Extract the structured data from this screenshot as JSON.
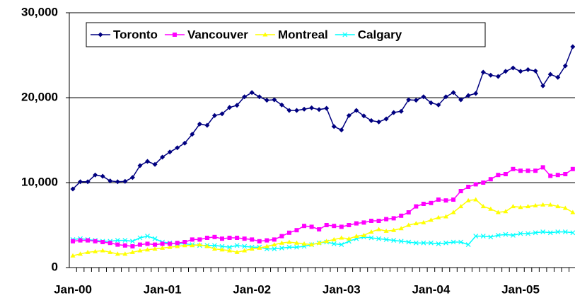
{
  "chart_data": {
    "type": "line",
    "categories": [
      "Jan-00",
      null,
      null,
      null,
      null,
      null,
      null,
      null,
      null,
      null,
      null,
      null,
      "Jan-01",
      null,
      null,
      null,
      null,
      null,
      null,
      null,
      null,
      null,
      null,
      null,
      "Jan-02",
      null,
      null,
      null,
      null,
      null,
      null,
      null,
      null,
      null,
      null,
      null,
      "Jan-03",
      null,
      null,
      null,
      null,
      null,
      null,
      null,
      null,
      null,
      null,
      null,
      "Jan-04",
      null,
      null,
      null,
      null,
      null,
      null,
      null,
      null,
      null,
      null,
      null,
      "Jan-05",
      null,
      null,
      null,
      null,
      null,
      null,
      null
    ],
    "series": [
      {
        "name": "Toronto",
        "color": "#000080",
        "marker": "diamond",
        "values": [
          9250,
          10100,
          10100,
          10900,
          10750,
          10200,
          10100,
          10150,
          10600,
          12000,
          12500,
          12150,
          13000,
          13600,
          14100,
          14650,
          15700,
          16900,
          16750,
          17900,
          18100,
          18850,
          19100,
          20100,
          20600,
          20100,
          19700,
          19750,
          19150,
          18500,
          18500,
          18650,
          18800,
          18600,
          18750,
          16600,
          16200,
          17900,
          18500,
          17850,
          17300,
          17150,
          17500,
          18250,
          18400,
          19750,
          19700,
          20100,
          19400,
          19150,
          20100,
          20600,
          19750,
          20250,
          20500,
          23000,
          22650,
          22500,
          23100,
          23500,
          23100,
          23300,
          23150,
          21400,
          22750,
          22400,
          23750,
          26000
        ]
      },
      {
        "name": "Vancouver",
        "color": "#ff00ff",
        "marker": "square",
        "values": [
          3100,
          3200,
          3200,
          3100,
          3000,
          2900,
          2700,
          2600,
          2500,
          2700,
          2800,
          2700,
          2800,
          2800,
          2900,
          3000,
          3300,
          3300,
          3500,
          3600,
          3400,
          3500,
          3500,
          3400,
          3300,
          3100,
          3200,
          3300,
          3700,
          4100,
          4400,
          4900,
          4800,
          4500,
          5000,
          4900,
          4800,
          5000,
          5200,
          5300,
          5500,
          5500,
          5700,
          5800,
          6100,
          6500,
          7200,
          7500,
          7600,
          8000,
          7900,
          8000,
          9000,
          9500,
          9800,
          10000,
          10400,
          10900,
          11000,
          11600,
          11400,
          11400,
          11400,
          11800,
          10800,
          10900,
          11000,
          11600
        ]
      },
      {
        "name": "Montreal",
        "color": "#ffff00",
        "marker": "triangle",
        "values": [
          1400,
          1600,
          1800,
          1900,
          2000,
          1800,
          1600,
          1600,
          1800,
          2000,
          2100,
          2200,
          2300,
          2400,
          2500,
          2600,
          2600,
          2700,
          2500,
          2200,
          2100,
          2000,
          1800,
          2000,
          2200,
          2300,
          2500,
          2700,
          2900,
          3000,
          2900,
          2800,
          2700,
          2900,
          3100,
          3300,
          3500,
          3400,
          3700,
          3800,
          4200,
          4500,
          4300,
          4400,
          4600,
          5000,
          5200,
          5300,
          5600,
          5900,
          6000,
          6500,
          7200,
          7900,
          8000,
          7200,
          6900,
          6500,
          6600,
          7200,
          7100,
          7200,
          7300,
          7400,
          7400,
          7200,
          7000,
          6500
        ]
      },
      {
        "name": "Calgary",
        "color": "#00ffff",
        "marker": "x",
        "values": [
          3300,
          3400,
          3300,
          3200,
          3100,
          3100,
          3200,
          3200,
          3100,
          3500,
          3700,
          3400,
          3000,
          2900,
          2800,
          2800,
          2700,
          2600,
          2600,
          2600,
          2500,
          2400,
          2600,
          2500,
          2400,
          2400,
          2200,
          2200,
          2300,
          2400,
          2400,
          2500,
          2700,
          2900,
          3000,
          2800,
          2700,
          3100,
          3400,
          3600,
          3500,
          3400,
          3300,
          3200,
          3100,
          3000,
          2900,
          2900,
          2900,
          2800,
          2900,
          3000,
          3000,
          2700,
          3700,
          3700,
          3600,
          3800,
          3900,
          3800,
          4000,
          4000,
          4100,
          4200,
          4100,
          4200,
          4200,
          4100
        ]
      }
    ],
    "ylim": [
      0,
      30000
    ],
    "yticks": [
      0,
      {
        "value": 10000,
        "label": "10,000"
      },
      {
        "value": 20000,
        "label": "20,000"
      },
      {
        "value": 30000,
        "label": "30,000"
      }
    ],
    "grid": true,
    "legend": "top"
  }
}
